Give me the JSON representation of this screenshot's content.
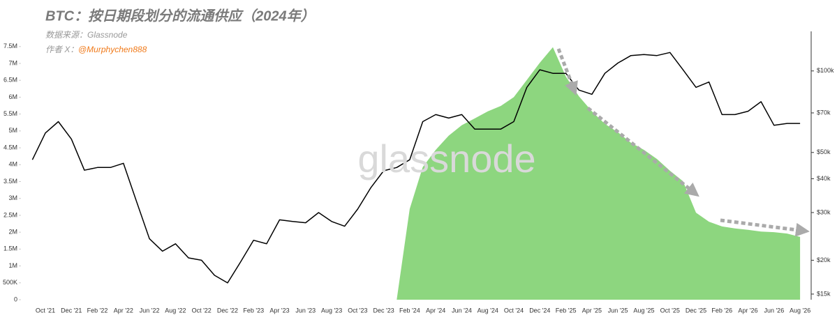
{
  "chart_data": {
    "type": "line",
    "title": "BTC：按日期段划分的流通供应（2024年）",
    "source": "数据来源：Glassnode",
    "author_label": "作者 X：",
    "author": "@Murphychen888",
    "watermark": "glassnode",
    "categories": [
      null,
      "Oct '21",
      null,
      "Dec '21",
      null,
      "Feb '22",
      null,
      "Apr '22",
      null,
      "Jun '22",
      null,
      "Aug '22",
      null,
      "Oct '22",
      null,
      "Dec '22",
      null,
      "Feb '23",
      null,
      "Apr '23",
      null,
      "Jun '23",
      null,
      "Aug '23",
      null,
      "Oct '23",
      null,
      "Dec '23",
      null,
      "Feb '24",
      null,
      "Apr '24",
      null,
      "Jun '24",
      null,
      "Aug '24",
      null,
      "Oct '24",
      null,
      "Dec '24",
      null,
      "Feb '25",
      null,
      "Apr '25",
      null,
      "Jun '25",
      null,
      "Aug '25",
      null,
      "Oct '25",
      null,
      "Dec '25",
      null,
      "Feb '26",
      null,
      "Apr '26",
      null,
      "Jun '26",
      null,
      "Aug '26"
    ],
    "series": [
      {
        "axis": "y",
        "area": true,
        "color": "#8dd67f",
        "values": [
          null,
          null,
          null,
          null,
          null,
          null,
          null,
          null,
          null,
          null,
          null,
          null,
          null,
          null,
          null,
          null,
          null,
          null,
          null,
          null,
          null,
          null,
          null,
          null,
          null,
          null,
          null,
          null,
          0,
          2690000,
          3930000,
          4440000,
          4860000,
          5170000,
          5370000,
          5580000,
          5740000,
          6000000,
          6510000,
          7020000,
          7480000,
          6610000,
          6030000,
          5580000,
          5210000,
          4960000,
          4650000,
          4440000,
          4170000,
          3820000,
          3510000,
          2580000,
          2310000,
          2170000,
          2110000,
          2070000,
          2020000,
          2000000,
          1960000,
          1860000
        ]
      },
      {
        "axis": "y2",
        "area": false,
        "color": "#000000",
        "values": [
          47000,
          59000,
          65000,
          56000,
          43000,
          44000,
          44000,
          45600,
          33000,
          24000,
          21600,
          23000,
          20400,
          20000,
          17600,
          16500,
          19700,
          23700,
          23000,
          28200,
          27800,
          27500,
          30000,
          27800,
          26700,
          30900,
          37000,
          42800,
          44000,
          47000,
          65000,
          69000,
          67000,
          69000,
          61000,
          61000,
          61000,
          65000,
          87000,
          101000,
          98000,
          98000,
          85000,
          82000,
          98000,
          107000,
          114000,
          115000,
          114000,
          117000,
          101000,
          87000,
          91000,
          69000,
          69000,
          71000,
          77000,
          63000,
          64000,
          64000
        ]
      }
    ],
    "ylim": [
      0,
      7950000
    ],
    "yticks": [
      0,
      {
        "value": 500000,
        "label": "500K"
      },
      {
        "value": 1000000,
        "label": "1M"
      },
      {
        "value": 1500000,
        "label": "1.5M"
      },
      {
        "value": 2000000,
        "label": "2M"
      },
      {
        "value": 2500000,
        "label": "2.5M"
      },
      {
        "value": 3000000,
        "label": "3M"
      },
      {
        "value": 3500000,
        "label": "3.5M"
      },
      {
        "value": 4000000,
        "label": "4M"
      },
      {
        "value": 4500000,
        "label": "4.5M"
      },
      {
        "value": 5000000,
        "label": "5M"
      },
      {
        "value": 5500000,
        "label": "5.5M"
      },
      {
        "value": 6000000,
        "label": "6M"
      },
      {
        "value": 6500000,
        "label": "6.5M"
      },
      {
        "value": 7000000,
        "label": "7M"
      },
      {
        "value": 7500000,
        "label": "7.5M"
      }
    ],
    "y2lim": [
      14300,
      140000
    ],
    "y2_log": true,
    "y2ticks": [
      {
        "value": 15000,
        "label": "$15k"
      },
      {
        "value": 20000,
        "label": "$20k"
      },
      {
        "value": 30000,
        "label": "$30k"
      },
      {
        "value": 40000,
        "label": "$40k"
      },
      {
        "value": 50000,
        "label": "$50k"
      },
      {
        "value": 70000,
        "label": "$70k"
      },
      {
        "value": 100000,
        "label": "$100k"
      }
    ]
  }
}
